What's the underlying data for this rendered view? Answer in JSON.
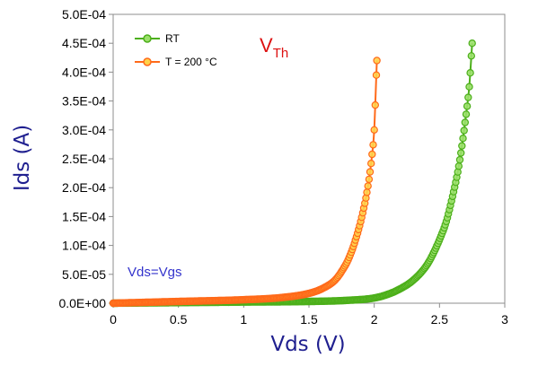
{
  "chart_data": {
    "type": "scatter",
    "xlabel": "Vds (V)",
    "ylabel": "Ids (A)",
    "xlim": [
      0,
      3
    ],
    "ylim": [
      0,
      0.0005
    ],
    "x_ticks": [
      "0",
      "0.5",
      "1",
      "1.5",
      "2",
      "2.5",
      "3"
    ],
    "y_ticks": [
      "0.0E+00",
      "5.0E-05",
      "1.0E-04",
      "1.5E-04",
      "2.0E-04",
      "2.5E-04",
      "3.0E-04",
      "3.5E-04",
      "4.0E-04",
      "4.5E-04",
      "5.0E-04"
    ],
    "grid": false,
    "legend_position": "top-left",
    "series": [
      {
        "name": "RT",
        "color": "#4caf1a",
        "x": [
          0,
          0.5,
          1.0,
          1.5,
          1.8,
          2.0,
          2.1,
          2.2,
          2.3,
          2.4,
          2.45,
          2.5,
          2.55,
          2.6,
          2.65,
          2.7,
          2.73,
          2.75
        ],
        "y": [
          0,
          1e-06,
          2e-06,
          3e-06,
          5e-06,
          9e-06,
          1.5e-05,
          2.5e-05,
          4e-05,
          6.5e-05,
          8.5e-05,
          0.00011,
          0.00014,
          0.000185,
          0.00024,
          0.00032,
          0.00038,
          0.00045
        ]
      },
      {
        "name": "T = 200 °C",
        "color": "#ff6a1a",
        "x": [
          0,
          0.5,
          1.0,
          1.3,
          1.5,
          1.6,
          1.7,
          1.75,
          1.8,
          1.85,
          1.9,
          1.95,
          1.98,
          2.0,
          2.02
        ],
        "y": [
          0,
          3e-06,
          6e-06,
          1e-05,
          1.7e-05,
          2.5e-05,
          4e-05,
          5.5e-05,
          7.5e-05,
          0.000105,
          0.000145,
          0.0002,
          0.00025,
          0.0003,
          0.00042
        ]
      }
    ],
    "annotations": [
      "V",
      "Th",
      "Vds=Vgs"
    ]
  }
}
